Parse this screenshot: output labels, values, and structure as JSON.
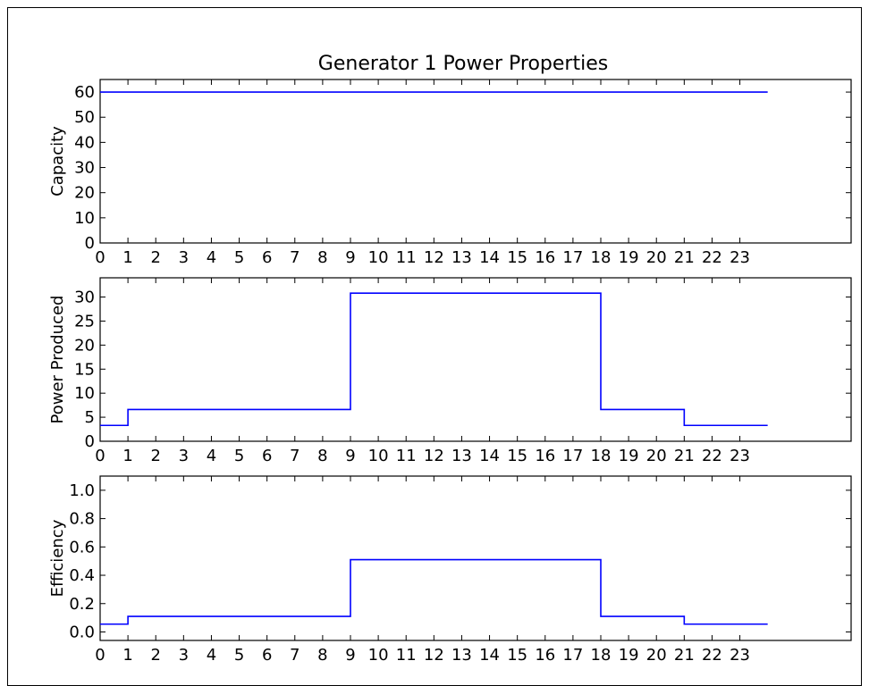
{
  "title": "Generator 1 Power Properties",
  "chart_data": [
    {
      "type": "line",
      "step": "post",
      "title": "Generator 1 Power Properties",
      "ylabel": "Capacity",
      "xlim": [
        0,
        27
      ],
      "ylim": [
        0,
        65
      ],
      "xticks": [
        0,
        1,
        2,
        3,
        4,
        5,
        6,
        7,
        8,
        9,
        10,
        11,
        12,
        13,
        14,
        15,
        16,
        17,
        18,
        19,
        20,
        21,
        22,
        23
      ],
      "yticks": [
        0,
        10,
        20,
        30,
        40,
        50,
        60
      ],
      "ytick_labels": [
        "0",
        "10",
        "20",
        "30",
        "40",
        "50",
        "60"
      ],
      "color": "#0000ff",
      "x": [
        0,
        24
      ],
      "y": [
        60,
        60
      ]
    },
    {
      "type": "line",
      "step": "post",
      "ylabel": "Power Produced",
      "xlim": [
        0,
        27
      ],
      "ylim": [
        0,
        34
      ],
      "xticks": [
        0,
        1,
        2,
        3,
        4,
        5,
        6,
        7,
        8,
        9,
        10,
        11,
        12,
        13,
        14,
        15,
        16,
        17,
        18,
        19,
        20,
        21,
        22,
        23
      ],
      "yticks": [
        0,
        5,
        10,
        15,
        20,
        25,
        30
      ],
      "ytick_labels": [
        "0",
        "5",
        "10",
        "15",
        "20",
        "25",
        "30"
      ],
      "color": "#0000ff",
      "x": [
        0,
        1,
        9,
        18,
        21,
        24
      ],
      "y": [
        3.3,
        6.6,
        30.8,
        6.6,
        3.3,
        3.3
      ]
    },
    {
      "type": "line",
      "step": "post",
      "ylabel": "Efficiency",
      "xlim": [
        0,
        27
      ],
      "ylim": [
        -0.06,
        1.1
      ],
      "xticks": [
        0,
        1,
        2,
        3,
        4,
        5,
        6,
        7,
        8,
        9,
        10,
        11,
        12,
        13,
        14,
        15,
        16,
        17,
        18,
        19,
        20,
        21,
        22,
        23
      ],
      "yticks": [
        0.0,
        0.2,
        0.4,
        0.6,
        0.8,
        1.0
      ],
      "ytick_labels": [
        "0.0",
        "0.2",
        "0.4",
        "0.6",
        "0.8",
        "1.0"
      ],
      "color": "#0000ff",
      "x": [
        0,
        1,
        9,
        18,
        21,
        24
      ],
      "y": [
        0.055,
        0.11,
        0.51,
        0.11,
        0.055,
        0.055
      ]
    }
  ]
}
